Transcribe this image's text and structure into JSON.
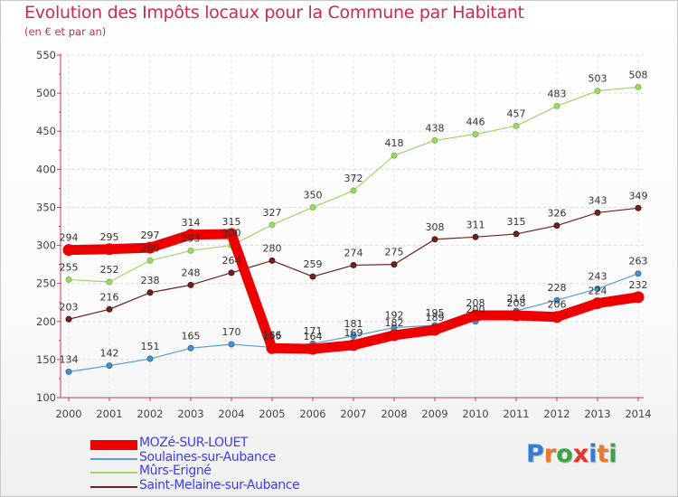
{
  "header": {
    "title": "Evolution des Impôts locaux pour la Commune par Habitant",
    "subtitle": "(en € et par an)"
  },
  "brand": {
    "letters": [
      "P",
      "r",
      "o",
      "x",
      "i",
      "t",
      "i"
    ],
    "colors": [
      "#2f7fd6",
      "#e97b25",
      "#3aa546",
      "#e2332b",
      "#2f7fd6",
      "#e97b25",
      "#3aa546"
    ]
  },
  "chart_data": {
    "type": "line",
    "title": "Evolution des Impôts locaux pour la Commune par Habitant",
    "subtitle": "(en € et par an)",
    "xlabel": "",
    "ylabel": "",
    "x": [
      "2000",
      "2001",
      "2002",
      "2003",
      "2004",
      "2005",
      "2006",
      "2007",
      "2008",
      "2009",
      "2010",
      "2011",
      "2012",
      "2013",
      "2014"
    ],
    "ylim": [
      100,
      550
    ],
    "yticks": [
      100,
      150,
      200,
      250,
      300,
      350,
      400,
      450,
      500,
      550
    ],
    "grid": true,
    "legend": "bottom-left",
    "series": [
      {
        "name": "MOZé-SUR-LOUET",
        "color": "#ee0000",
        "values": [
          294,
          295,
          297,
          314,
          315,
          165,
          164,
          169,
          182,
          189,
          208,
          208,
          206,
          224,
          232
        ]
      },
      {
        "name": "Soulaines-sur-Aubance",
        "color": "#5aa0d6",
        "values": [
          134,
          142,
          151,
          165,
          170,
          166,
          171,
          181,
          192,
          195,
          200,
          214,
          228,
          243,
          263
        ]
      },
      {
        "name": "Mûrs-Erigné",
        "color": "#9ed66c",
        "values": [
          255,
          252,
          280,
          293,
          300,
          327,
          350,
          372,
          418,
          438,
          446,
          457,
          483,
          503,
          508
        ]
      },
      {
        "name": "Saint-Melaine-sur-Aubance",
        "color": "#6e2222",
        "values": [
          203,
          216,
          238,
          248,
          264,
          280,
          259,
          274,
          275,
          308,
          311,
          315,
          326,
          343,
          349
        ]
      }
    ]
  }
}
